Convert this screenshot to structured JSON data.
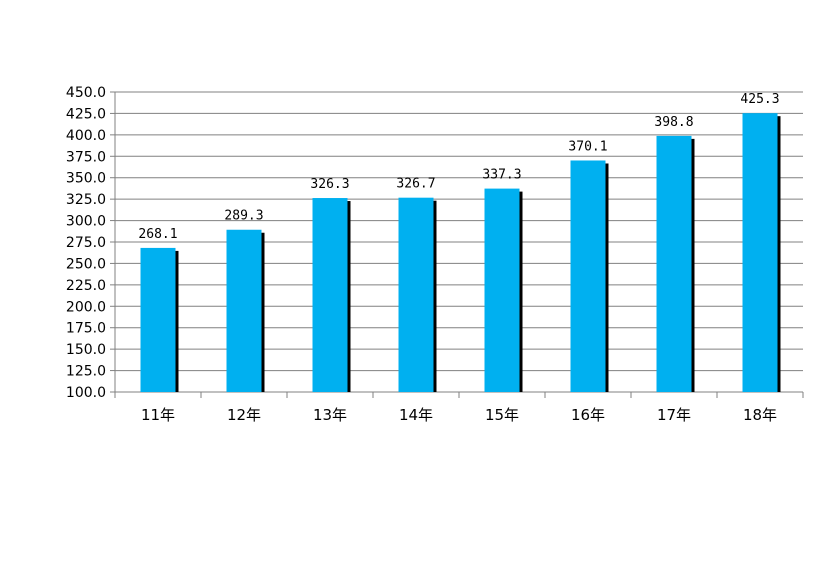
{
  "chart_data": {
    "type": "bar",
    "title": "",
    "xlabel": "",
    "ylabel": "",
    "categories": [
      "11年",
      "12年",
      "13年",
      "14年",
      "15年",
      "16年",
      "17年",
      "18年"
    ],
    "values": [
      268.1,
      289.3,
      326.3,
      326.7,
      337.3,
      370.1,
      398.8,
      425.3
    ],
    "value_labels": [
      "268.1",
      "289.3",
      "326.3",
      "326.7",
      "337.3",
      "370.1",
      "398.8",
      "425.3"
    ],
    "ylim": [
      100,
      450
    ],
    "ytick_step": 25,
    "ytick_labels": [
      "100.0",
      "125.0",
      "150.0",
      "175.0",
      "200.0",
      "225.0",
      "250.0",
      "275.0",
      "300.0",
      "325.0",
      "350.0",
      "375.0",
      "400.0",
      "425.0",
      "450.0"
    ],
    "grid": true,
    "legend": "none",
    "colors": {
      "bar": "#00b0f0",
      "bar_shadow": "#000000",
      "grid": "#808080",
      "axis": "#808080"
    }
  }
}
